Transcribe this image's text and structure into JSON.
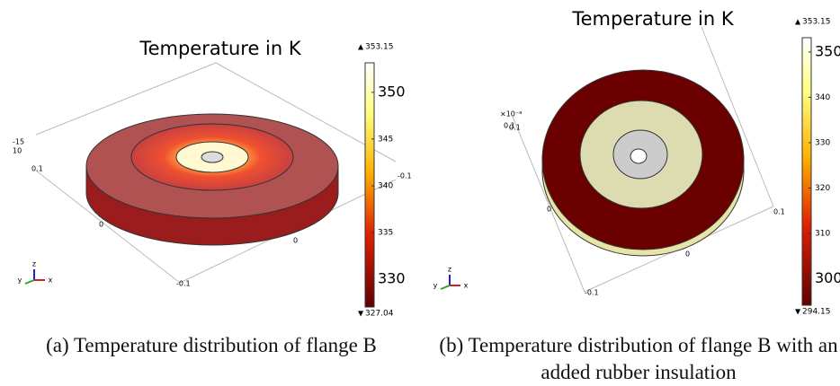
{
  "panels": [
    {
      "title": "Temperature in K",
      "colorbar": {
        "max": 353.15,
        "min": 327.04,
        "major_ticks": [
          350,
          330
        ],
        "minor_ticks": [
          345,
          340,
          335
        ]
      },
      "axis_labels": [
        "10",
        "-15",
        "0.1",
        "0",
        "0",
        "-0.1",
        "-0.1"
      ],
      "triad": [
        "z",
        "y",
        "x"
      ],
      "caption": "(a) Temperature distribution of flange B"
    },
    {
      "title": "Temperature in K",
      "colorbar": {
        "max": 353.15,
        "min": 294.15,
        "major_ticks": [
          350,
          300
        ],
        "minor_ticks": [
          340,
          330,
          320,
          310
        ]
      },
      "axis_labels": [
        "×10⁻⁸",
        "0.1",
        "0",
        "0.1",
        "0",
        "-0.1",
        "0.1"
      ],
      "triad": [
        "z",
        "y",
        "x"
      ],
      "caption": "(b) Temperature distribution of flange B with an added rubber insulation"
    }
  ]
}
